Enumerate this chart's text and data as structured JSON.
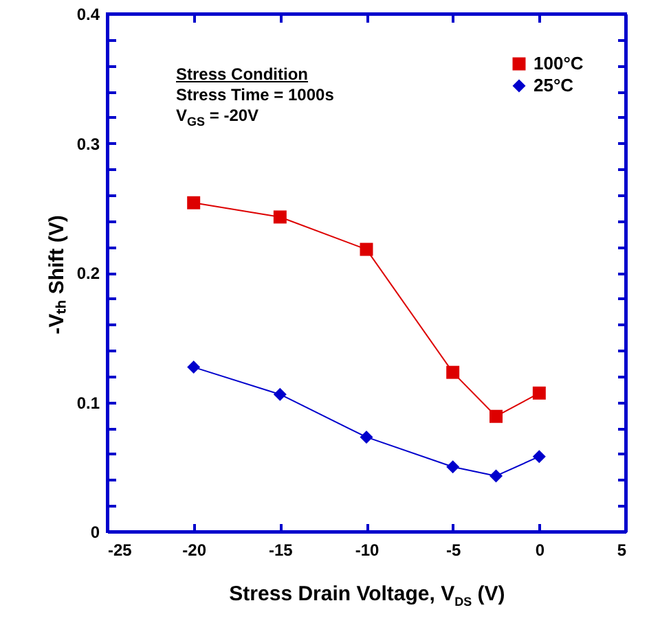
{
  "chart_data": {
    "type": "line",
    "xlabel": "Stress Drain Voltage, V$_{DS}$ (V)",
    "ylabel": "-Vₜₕ Shift (V)",
    "annotations": [
      "Stress Condition",
      "Stress Time = 1000s",
      "V$_{GS}$ = -20V"
    ],
    "x": [
      -20,
      -15,
      -10,
      -5,
      -2.5,
      0
    ],
    "series": [
      {
        "name": "100°C",
        "color": "#dd0000",
        "marker": "square",
        "values": [
          0.254,
          0.243,
          0.218,
          0.123,
          0.089,
          0.107
        ]
      },
      {
        "name": "25°C",
        "color": "#0000cc",
        "marker": "diamond",
        "values": [
          0.127,
          0.106,
          0.073,
          0.05,
          0.043,
          0.058
        ]
      }
    ],
    "xlim": [
      -25,
      5
    ],
    "xticks": [
      -25,
      -20,
      -15,
      -10,
      -5,
      0,
      5
    ],
    "ylim": [
      0,
      0.4
    ],
    "yticks": [
      0,
      {
        "value": 0.02,
        "label": null
      },
      {
        "value": 0.04,
        "label": null
      },
      {
        "value": 0.06,
        "label": null
      },
      {
        "value": 0.08,
        "label": null
      },
      0.1,
      {
        "value": 0.12,
        "label": null
      },
      {
        "value": 0.14,
        "label": null
      },
      {
        "value": 0.16,
        "label": null
      },
      {
        "value": 0.18,
        "label": null
      },
      0.2,
      {
        "value": 0.22,
        "label": null
      },
      {
        "value": 0.24,
        "label": null
      },
      {
        "value": 0.26,
        "label": null
      },
      {
        "value": 0.28,
        "label": null
      },
      0.3,
      {
        "value": 0.32,
        "label": null
      },
      {
        "value": 0.34,
        "label": null
      },
      {
        "value": 0.36,
        "label": null
      },
      {
        "value": 0.38,
        "label": null
      },
      0.4
    ],
    "grid": false,
    "legend": "top right",
    "line_style": "solid"
  }
}
